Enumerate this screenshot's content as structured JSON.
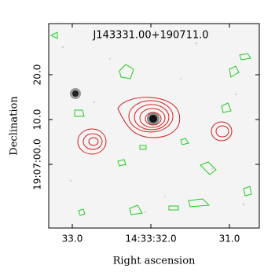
{
  "chart_data": {
    "type": "image",
    "title": "J143331.00+190711.0",
    "x_label": "Right ascension",
    "y_label": "Declination",
    "xlim": [
      33.3,
      30.62
    ],
    "ylim": [
      -14.2,
      31.4
    ],
    "xticks": [
      {
        "value": 33.0,
        "label": "33.0"
      },
      {
        "value": 32.0,
        "label": "14:33:32.0"
      },
      {
        "value": 31.0,
        "label": "31.0"
      }
    ],
    "yticks": [
      {
        "value": 20,
        "label": "20.0"
      },
      {
        "value": 10,
        "label": "10.0"
      },
      {
        "value": 0,
        "label": "19:07:00.0"
      }
    ]
  }
}
